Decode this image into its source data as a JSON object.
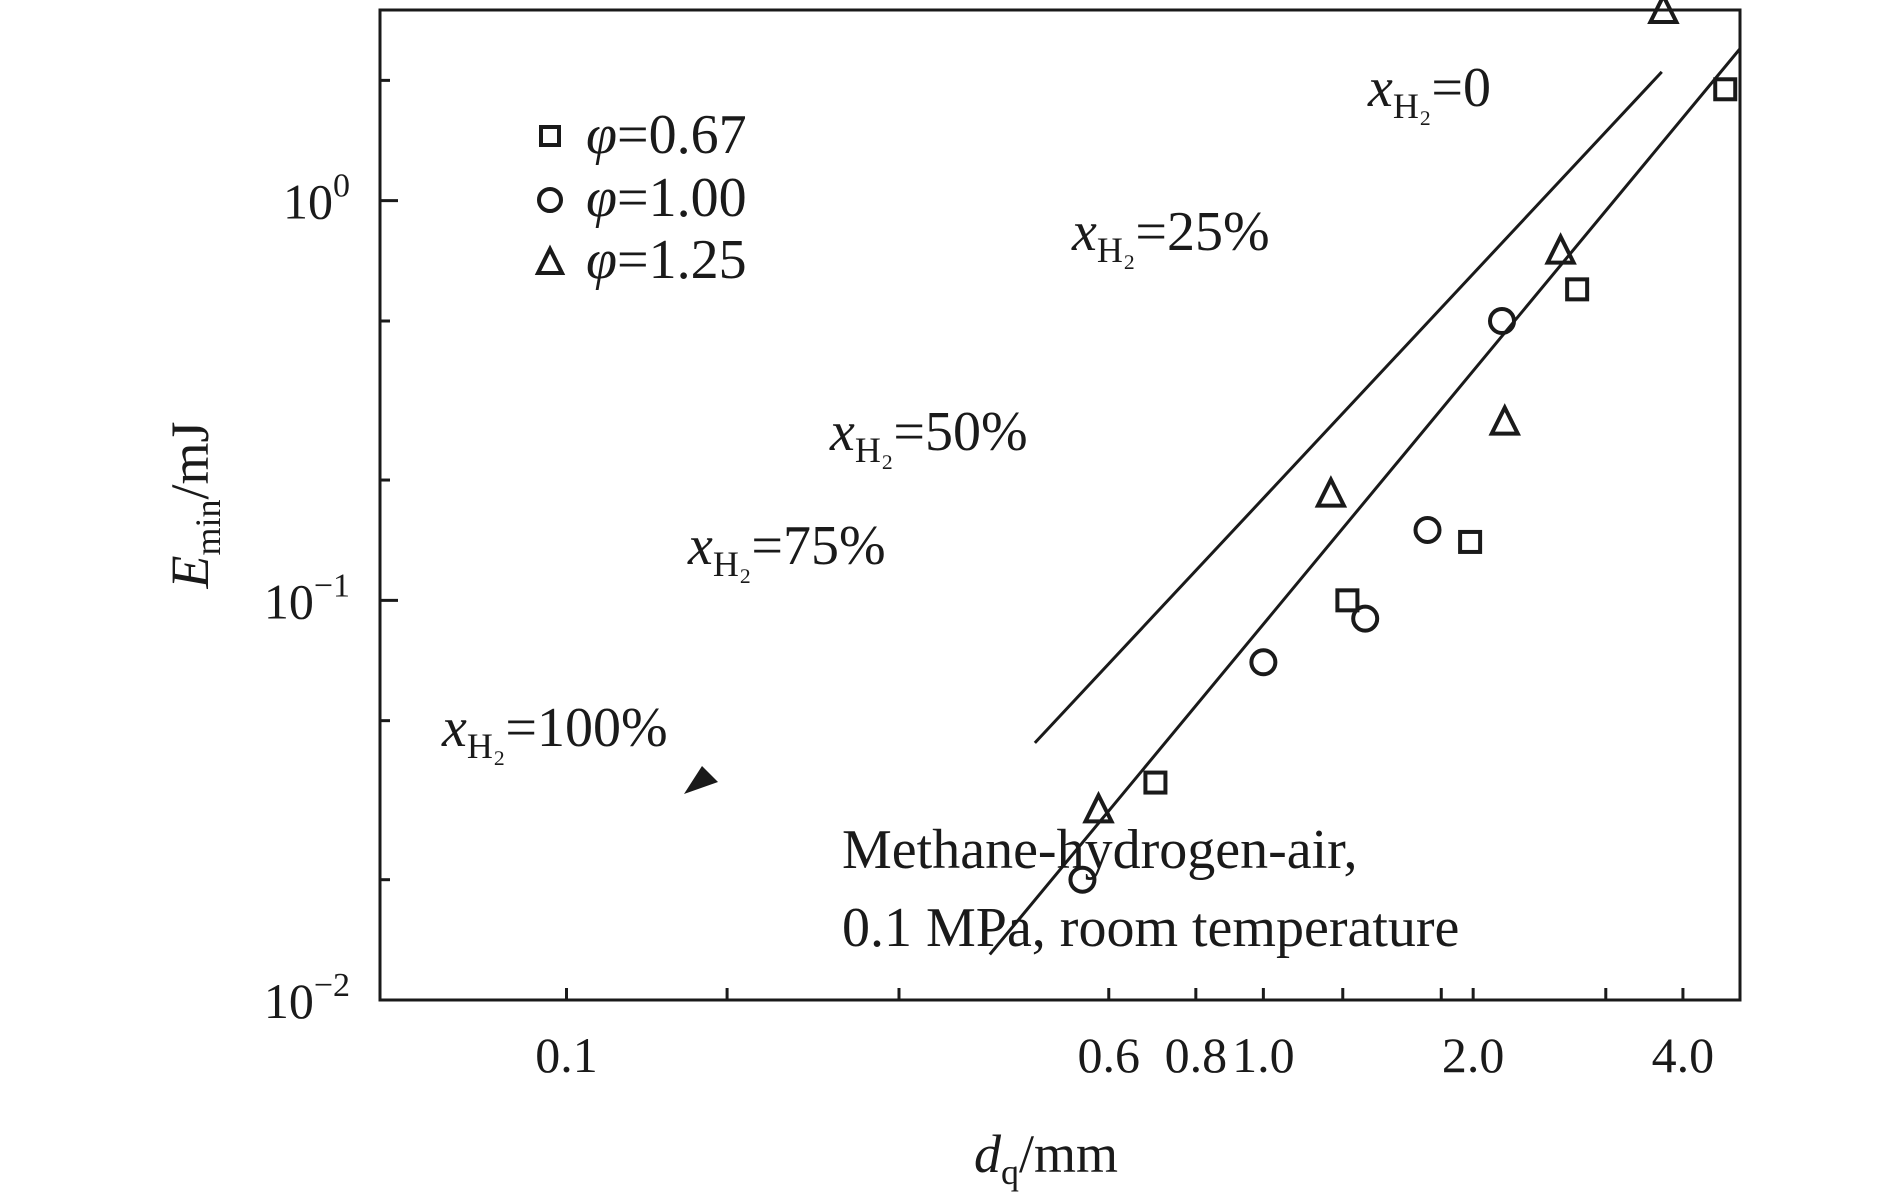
{
  "chart_data": {
    "type": "scatter",
    "xscale": "log",
    "yscale": "log",
    "xlim": [
      0.054,
      4.83
    ],
    "ylim": [
      0.01,
      3
    ],
    "x_ticks": [
      {
        "value": 0.1,
        "label": "0.1"
      },
      {
        "value": 0.6,
        "label": "0.6"
      },
      {
        "value": 0.8,
        "label": "0.8"
      },
      {
        "value": 1.0,
        "label": "1.0"
      },
      {
        "value": 2.0,
        "label": "2.0"
      },
      {
        "value": 4.0,
        "label": "4.0"
      }
    ],
    "x_minor_ticks": [
      0.1,
      0.17,
      0.3,
      0.6,
      0.8,
      1.0,
      1.3,
      1.8,
      2.0,
      3.1,
      4.0
    ],
    "y_ticks": [
      {
        "value": 0.01,
        "label": "10",
        "exp": "−2"
      },
      {
        "value": 0.1,
        "label": "10",
        "exp": "−1"
      },
      {
        "value": 1,
        "label": "10",
        "exp": "0"
      }
    ],
    "y_minor_ticks": [
      0.02,
      0.05,
      0.2,
      0.5,
      2
    ],
    "xlabel": {
      "main": "d",
      "sub": "q",
      "rest": "/mm"
    },
    "ylabel": {
      "main": "E",
      "sub": "min",
      "rest": "/mJ"
    },
    "series": [
      {
        "name": "φ=0.67",
        "marker": "square",
        "x": [
          0.7,
          1.32,
          1.98,
          2.82,
          4.6
        ],
        "y": [
          0.035,
          0.1,
          0.14,
          0.6,
          1.9
        ]
      },
      {
        "name": "φ=1.00",
        "marker": "circle",
        "x": [
          0.55,
          1.0,
          1.4,
          1.72,
          2.2
        ],
        "y": [
          0.02,
          0.07,
          0.09,
          0.15,
          0.5
        ]
      },
      {
        "name": "φ=1.25",
        "marker": "triangle",
        "x": [
          0.58,
          1.25,
          2.22,
          2.67,
          3.75
        ],
        "y": [
          0.03,
          0.185,
          0.28,
          0.75,
          3.0
        ]
      }
    ],
    "fit_lines": [
      {
        "x": [
          0.405,
          4.83
        ],
        "y": [
          0.013,
          2.4
        ]
      },
      {
        "x": [
          0.47,
          3.73
        ],
        "y": [
          0.044,
          2.1
        ]
      }
    ],
    "legend": {
      "placement": "top-left",
      "entries": [
        {
          "symbol": "φ",
          "rest": "=0.67",
          "marker": "square"
        },
        {
          "symbol": "φ",
          "rest": "=1.00",
          "marker": "circle"
        },
        {
          "symbol": "φ",
          "rest": "=1.25",
          "marker": "triangle"
        }
      ]
    },
    "annotations": [
      {
        "var": "x",
        "sub": "H₂",
        "rest": "=0"
      },
      {
        "var": "x",
        "sub": "H₂",
        "rest": "=25%"
      },
      {
        "var": "x",
        "sub": "H₂",
        "rest": "=50%"
      },
      {
        "var": "x",
        "sub": "H₂",
        "rest": "=75%"
      },
      {
        "var": "x",
        "sub": "H₂",
        "rest": "=100%"
      }
    ],
    "note": [
      "Methane-hydrogen-air,",
      "0.1 MPa, room temperature"
    ],
    "grid": false,
    "colors": {
      "ink": "#1a1a1a",
      "background": "#ffffff"
    }
  }
}
